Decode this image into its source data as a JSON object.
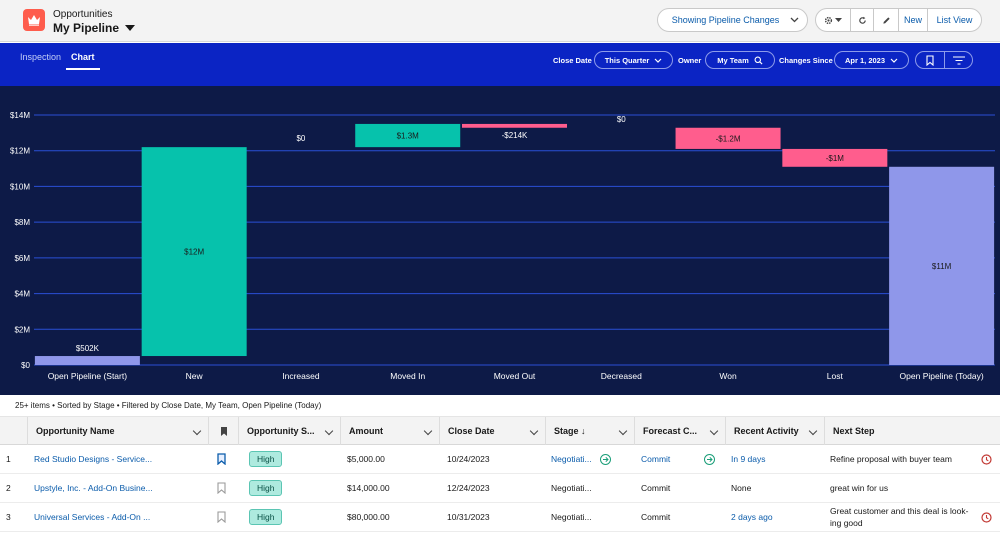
{
  "header": {
    "object_label": "Opportunities",
    "title": "My Pipeline",
    "pipeline_button": "Showing Pipeline Changes",
    "new_label": "New",
    "list_view_label": "List View"
  },
  "toolbar": {
    "tabs": [
      "Inspection",
      "Chart"
    ],
    "active_tab": "Chart",
    "filters": {
      "close_date_label": "Close Date",
      "close_date_value": "This Quarter",
      "owner_label": "Owner",
      "owner_value": "My Team",
      "changes_since_label": "Changes Since",
      "changes_since_value": "Apr 1, 2023"
    }
  },
  "chart_data": {
    "type": "bar",
    "subtype": "waterfall",
    "categories": [
      "Open Pipeline (Start)",
      "New",
      "Increased",
      "Moved In",
      "Moved Out",
      "Decreased",
      "Won",
      "Lost",
      "Open Pipeline (Today)"
    ],
    "bars": [
      {
        "base": 0,
        "top": 0.502,
        "label": "$502K",
        "color": "#8f97ea"
      },
      {
        "base": 0.502,
        "top": 12.2,
        "label": "$12M",
        "color": "#06c2ac"
      },
      {
        "base": 12.2,
        "top": 12.2,
        "label": "$0",
        "color": "#06c2ac"
      },
      {
        "base": 12.2,
        "top": 13.5,
        "label": "$1.3M",
        "color": "#06c2ac"
      },
      {
        "base": 13.286,
        "top": 13.5,
        "label": "-$214K",
        "color": "#ff5d8d"
      },
      {
        "base": 13.286,
        "top": 13.286,
        "label": "$0",
        "color": "#ff5d8d"
      },
      {
        "base": 12.1,
        "top": 13.286,
        "label": "-$1.2M",
        "color": "#ff5d8d"
      },
      {
        "base": 11.1,
        "top": 12.1,
        "label": "-$1M",
        "color": "#ff5d8d"
      },
      {
        "base": 0,
        "top": 11.1,
        "label": "$11M",
        "color": "#8f97ea"
      }
    ],
    "yticks": [
      "$0",
      "$2M",
      "$4M",
      "$6M",
      "$8M",
      "$10M",
      "$12M",
      "$14M"
    ],
    "ytick_values": [
      0,
      2,
      4,
      6,
      8,
      10,
      12,
      14
    ],
    "ylim": [
      0,
      14
    ],
    "grid": true,
    "colors": {
      "background": "#0d1a47",
      "grid": "#2a4fd6",
      "increase": "#06c2ac",
      "decrease": "#ff5d8d",
      "total": "#8f97ea"
    }
  },
  "table": {
    "summary": "25+ items • Sorted by Stage • Filtered by Close Date, My Team, Open Pipeline (Today)",
    "columns": [
      "Opportunity Name",
      "",
      "Opportunity S...",
      "Amount",
      "Close Date",
      "Stage ↓",
      "Forecast C...",
      "Recent Activity",
      "Next Step"
    ],
    "rows": [
      {
        "num": "1",
        "name": "Red Studio Designs - Service...",
        "bookmarked": true,
        "score": "High",
        "amount": "$5,000.00",
        "close_date": "10/24/2023",
        "stage": "Negotiati...",
        "stage_arrow": true,
        "forecast": "Commit",
        "forecast_arrow": true,
        "activity": "In 9 days",
        "activity_link": true,
        "next_step": "Refine proposal with buyer team",
        "next_step_2": ""
      },
      {
        "num": "2",
        "name": "Upstyle, Inc. - Add-On Busine...",
        "bookmarked": false,
        "score": "High",
        "amount": "$14,000.00",
        "close_date": "12/24/2023",
        "stage": "Negotiati...",
        "stage_arrow": false,
        "forecast": "Commit",
        "forecast_arrow": false,
        "activity": "None",
        "activity_link": false,
        "next_step": "great win for us",
        "next_step_2": ""
      },
      {
        "num": "3",
        "name": "Universal Services - Add-On ...",
        "bookmarked": false,
        "score": "High",
        "amount": "$80,000.00",
        "close_date": "10/31/2023",
        "stage": "Negotiati...",
        "stage_arrow": false,
        "forecast": "Commit",
        "forecast_arrow": false,
        "activity": "2 days ago",
        "activity_link": true,
        "next_step": "Great customer and this deal is look-",
        "next_step_2": "ing good"
      }
    ]
  }
}
